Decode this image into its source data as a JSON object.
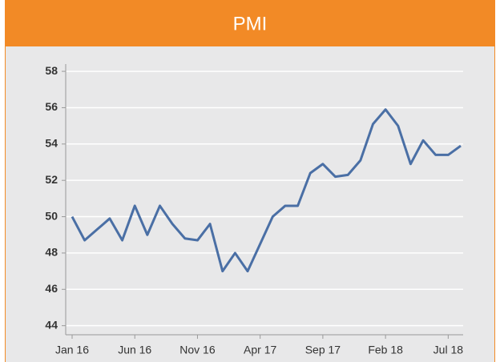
{
  "chart_data": {
    "type": "line",
    "title": "PMI",
    "categories": [
      "Jan 16",
      null,
      null,
      null,
      null,
      "Jun 16",
      null,
      null,
      null,
      null,
      "Nov 16",
      null,
      null,
      null,
      null,
      "Apr 17",
      null,
      null,
      null,
      null,
      "Sep 17",
      null,
      null,
      null,
      null,
      "Feb 18",
      null,
      null,
      null,
      null,
      "Jul 18",
      null
    ],
    "series": [
      {
        "name": "PMI",
        "color": "#4a6fa5",
        "values": [
          50.0,
          48.7,
          49.3,
          49.9,
          48.7,
          50.6,
          49.0,
          50.6,
          49.6,
          48.8,
          48.7,
          49.6,
          47.0,
          48.0,
          47.0,
          48.5,
          50.0,
          50.6,
          50.6,
          52.4,
          52.9,
          52.2,
          52.3,
          53.1,
          55.1,
          55.9,
          55.0,
          52.9,
          54.2,
          53.4,
          53.4,
          53.9
        ]
      }
    ],
    "ylim": [
      43.5,
      58.4
    ],
    "yticks": [
      44,
      46,
      48,
      50,
      52,
      54,
      56,
      58
    ],
    "grid": true
  }
}
